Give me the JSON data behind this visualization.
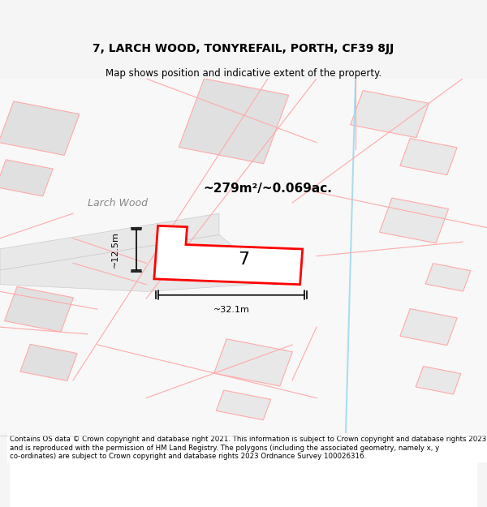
{
  "title": "7, LARCH WOOD, TONYREFAIL, PORTH, CF39 8JJ",
  "subtitle": "Map shows position and indicative extent of the property.",
  "footer": "Contains OS data © Crown copyright and database right 2021. This information is subject to Crown copyright and database rights 2023 and is reproduced with the permission of HM Land Registry. The polygons (including the associated geometry, namely x, y co-ordinates) are subject to Crown copyright and database rights 2023 Ordnance Survey 100026316.",
  "bg_color": "#f0f0f0",
  "map_bg": "#ffffff",
  "area_text": "~279m²/~0.069ac.",
  "street_label": "Larch Wood",
  "property_number": "7",
  "dim_width": "~32.1m",
  "dim_height": "~12.5m",
  "red_line_color": "#ff0000",
  "pink_line_color": "#ffaaaa",
  "gray_fill": "#e0e0e0",
  "light_gray_fill": "#eeeeee",
  "map_region": [
    0,
    0,
    1,
    1
  ]
}
